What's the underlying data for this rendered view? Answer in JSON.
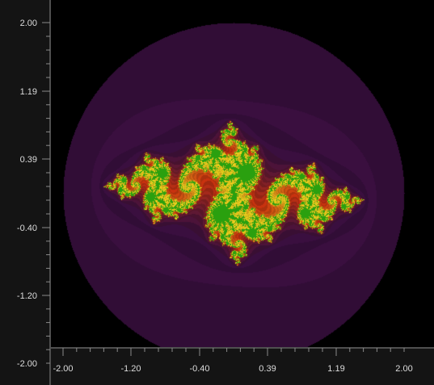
{
  "plot": {
    "domain": [
      -2.0,
      2.0
    ],
    "range": [
      -2.0,
      2.0
    ],
    "x_ticks": [
      "-2.00",
      "-1.20",
      "-0.40",
      "0.39",
      "1.19",
      "2.00"
    ],
    "y_ticks": [
      "2.00",
      "1.19",
      "0.39",
      "-0.40",
      "-1.20",
      "-2.00"
    ],
    "colors": {
      "background": "#000000",
      "axis_panel": "#141414",
      "tick_text": "#dcdcdc",
      "low_iter": "#3a0f3f",
      "mid_iter": "#c8320f",
      "high_iter": "#f0d21e",
      "max_iter": "#2aa00f"
    }
  }
}
